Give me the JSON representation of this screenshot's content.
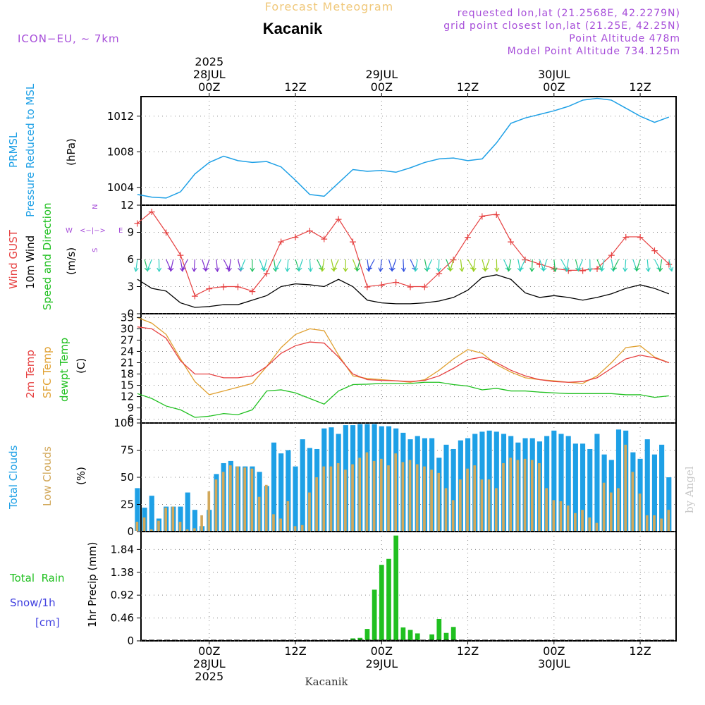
{
  "header": {
    "title": "Forecast Meteogram",
    "location": "Kacanik",
    "model": "ICON−EU, ~ 7km",
    "requested": "requested lon,lat (21.2568E, 42.2279N)",
    "grid_point": "grid point closest lon,lat (21.25E, 42.25N)",
    "point_altitude": "Point Altitude 478m",
    "model_altitude": "Model Point Altitude 734.125m",
    "footer_location": "Kacanik",
    "credit": "by Angel"
  },
  "time_axis": {
    "top_labels": [
      {
        "hour": 24,
        "lines": [
          "2025",
          "28JUL",
          "00Z"
        ]
      },
      {
        "hour": 36,
        "lines": [
          "12Z"
        ]
      },
      {
        "hour": 48,
        "lines": [
          "29JUL",
          "00Z"
        ]
      },
      {
        "hour": 60,
        "lines": [
          "12Z"
        ]
      },
      {
        "hour": 72,
        "lines": [
          "30JUL",
          "00Z"
        ]
      },
      {
        "hour": 84,
        "lines": [
          "12Z"
        ]
      }
    ],
    "bottom_labels": [
      {
        "hour": 24,
        "lines": [
          "00Z",
          "28JUL",
          "2025"
        ]
      },
      {
        "hour": 36,
        "lines": [
          "12Z"
        ]
      },
      {
        "hour": 48,
        "lines": [
          "00Z",
          "29JUL"
        ]
      },
      {
        "hour": 60,
        "lines": [
          "12Z"
        ]
      },
      {
        "hour": 72,
        "lines": [
          "00Z",
          "30JUL"
        ]
      },
      {
        "hour": 84,
        "lines": [
          "12Z"
        ]
      }
    ]
  },
  "colors": {
    "pressure": "#1ea0e6",
    "gust": "#e64040",
    "wind": "#000000",
    "temp2m": "#e64040",
    "sfc": "#e0a030",
    "dewpt": "#20c020",
    "total_cloud": "#1ea0e6",
    "low_cloud": "#d2a85a",
    "rain": "#20c020",
    "snow": "#4040e0",
    "purple": "#a64dd9"
  },
  "panels": {
    "pressure": {
      "labels": [
        {
          "text": "PRMSL",
          "color": "#1ea0e6"
        },
        {
          "text": "Pressure Reduced to MSL",
          "color": "#1ea0e6"
        },
        {
          "text": "(hPa)",
          "color": "#000000"
        }
      ],
      "ticks": [
        "1004",
        "1008",
        "1012"
      ]
    },
    "wind": {
      "labels": [
        {
          "text": "Wind GUST",
          "color": "#e64040"
        },
        {
          "text": "10m Wind",
          "color": "#000000"
        },
        {
          "text": "Speed and Direction",
          "color": "#20c020"
        },
        {
          "text": "(m/s)",
          "color": "#000000"
        }
      ],
      "ticks": [
        "0",
        "3",
        "6",
        "9",
        "12"
      ],
      "compass": {
        "n": "N",
        "s": "S",
        "e": "E",
        "w": "W",
        "arrow": "<−|−>"
      }
    },
    "temp": {
      "labels": [
        {
          "text": "2m Temp",
          "color": "#e64040"
        },
        {
          "text": "SFC Temp",
          "color": "#e0a030"
        },
        {
          "text": "dewpt Temp",
          "color": "#20c020"
        },
        {
          "text": "(C)",
          "color": "#000000"
        }
      ],
      "ticks": [
        "6",
        "9",
        "12",
        "15",
        "18",
        "21",
        "24",
        "27",
        "30",
        "33"
      ]
    },
    "clouds": {
      "labels": [
        {
          "text": "Total Clouds",
          "color": "#1ea0e6"
        },
        {
          "text": "Low Clouds",
          "color": "#d2a85a"
        },
        {
          "text": "(%)",
          "color": "#000000"
        }
      ],
      "ticks": [
        "0",
        "25",
        "50",
        "75",
        "100"
      ]
    },
    "precip": {
      "labels": [
        {
          "text": "Total  Rain",
          "color": "#20c020"
        },
        {
          "text": "Snow/1h",
          "color": "#4040e0"
        },
        {
          "text": "[cm]",
          "color": "#4040e0"
        },
        {
          "text": "1hr Precip (mm)",
          "color": "#000000"
        }
      ],
      "ticks": [
        "0",
        "0.46",
        "0.92",
        "1.38",
        "1.84"
      ]
    }
  },
  "chart_data": [
    {
      "type": "line",
      "title": "PRMSL Pressure Reduced to MSL",
      "ylabel": "(hPa)",
      "ylim": [
        1002.0,
        1014.2
      ],
      "x_hours": [
        14,
        16,
        18,
        20,
        22,
        24,
        26,
        28,
        30,
        32,
        34,
        36,
        38,
        40,
        42,
        44,
        46,
        48,
        50,
        52,
        54,
        56,
        58,
        60,
        62,
        64,
        66,
        68,
        70,
        72,
        74,
        76,
        78,
        80,
        82,
        84,
        86,
        88
      ],
      "series": [
        {
          "values": [
            1003.2,
            1002.9,
            1002.8,
            1003.5,
            1005.5,
            1006.8,
            1007.5,
            1007.0,
            1006.8,
            1006.9,
            1006.3,
            1004.8,
            1003.2,
            1003.0,
            1004.5,
            1006.0,
            1005.8,
            1005.9,
            1005.7,
            1006.2,
            1006.8,
            1007.2,
            1007.3,
            1007.0,
            1007.2,
            1009.0,
            1011.2,
            1011.8,
            1012.2,
            1012.6,
            1013.1,
            1013.8,
            1014.0,
            1013.8,
            1012.9,
            1012.0,
            1011.3,
            1011.9
          ]
        }
      ],
      "grid": true
    },
    {
      "type": "line",
      "title": "Wind GUST / 10m Wind Speed and Direction",
      "ylabel": "(m/s)",
      "ylim": [
        0,
        12
      ],
      "x_hours": [
        14,
        16,
        18,
        20,
        22,
        24,
        26,
        28,
        30,
        32,
        34,
        36,
        38,
        40,
        42,
        44,
        46,
        48,
        50,
        52,
        54,
        56,
        58,
        60,
        62,
        64,
        66,
        68,
        70,
        72,
        74,
        76,
        78,
        80,
        82,
        84,
        86,
        88
      ],
      "series": [
        {
          "name": "Wind GUST",
          "values": [
            10.0,
            11.3,
            9.0,
            6.5,
            2.0,
            2.8,
            3.0,
            3.0,
            2.5,
            4.5,
            8.0,
            8.5,
            9.2,
            8.3,
            10.5,
            8.0,
            3.0,
            3.2,
            3.5,
            3.0,
            3.0,
            4.5,
            6.0,
            8.5,
            10.8,
            11.0,
            8.0,
            6.0,
            5.5,
            5.0,
            4.8,
            4.8,
            5.0,
            6.5,
            8.5,
            8.5,
            7.0,
            5.5
          ]
        },
        {
          "name": "10m Wind",
          "values": [
            3.8,
            2.8,
            2.5,
            1.2,
            0.7,
            0.8,
            1.0,
            1.0,
            1.5,
            2.0,
            3.0,
            3.3,
            3.2,
            3.0,
            3.8,
            3.0,
            1.5,
            1.2,
            1.1,
            1.1,
            1.2,
            1.4,
            1.8,
            2.6,
            4.0,
            4.3,
            3.8,
            2.3,
            1.8,
            2.0,
            1.8,
            1.5,
            1.8,
            2.2,
            2.8,
            3.2,
            2.8,
            2.2
          ]
        }
      ],
      "grid": true
    },
    {
      "type": "line",
      "title": "2m Temp / SFC Temp / dewpt Temp",
      "ylabel": "(C)",
      "ylim": [
        5,
        34
      ],
      "x_hours": [
        14,
        16,
        18,
        20,
        22,
        24,
        26,
        28,
        30,
        32,
        34,
        36,
        38,
        40,
        42,
        44,
        46,
        48,
        50,
        52,
        54,
        56,
        58,
        60,
        62,
        64,
        66,
        68,
        70,
        72,
        74,
        76,
        78,
        80,
        82,
        84,
        86,
        88
      ],
      "series": [
        {
          "name": "2m Temp",
          "values": [
            30.5,
            30,
            27.5,
            21.5,
            18,
            18,
            17,
            17,
            17.5,
            20,
            23.5,
            25.5,
            26.5,
            26.2,
            22.5,
            18,
            16.5,
            16.3,
            16.2,
            16,
            16.3,
            17.5,
            19.5,
            21.8,
            22.5,
            21,
            19,
            17.5,
            16.5,
            16,
            15.8,
            16,
            17,
            19.5,
            22,
            23,
            22.3,
            21
          ]
        },
        {
          "name": "SFC Temp",
          "values": [
            33,
            31.5,
            28.5,
            22,
            16,
            12.5,
            13.5,
            14.5,
            15.5,
            20,
            25,
            28.5,
            30,
            29.5,
            23,
            17.5,
            16.8,
            16.5,
            16.2,
            15.8,
            16.5,
            19,
            22,
            24.5,
            23.5,
            20.5,
            18.5,
            17,
            16.5,
            16.2,
            15.8,
            15.5,
            17.5,
            21,
            25,
            25.5,
            22.5,
            21
          ]
        },
        {
          "name": "dewpt Temp",
          "values": [
            12.8,
            11.5,
            9.5,
            8.5,
            6.5,
            6.8,
            7.5,
            7.2,
            8.5,
            13.5,
            13.8,
            13,
            11.5,
            10,
            13.5,
            15.2,
            15.3,
            15.5,
            15.5,
            15.5,
            15.8,
            15.8,
            15.2,
            14.8,
            13.8,
            14.2,
            13.5,
            13.5,
            13.2,
            13,
            12.8,
            12.8,
            12.8,
            12.8,
            12.5,
            12.5,
            11.8,
            12.2
          ]
        }
      ],
      "grid": true
    },
    {
      "type": "bar",
      "title": "Total Clouds / Low Clouds",
      "ylabel": "(%)",
      "ylim": [
        0,
        100
      ],
      "x_hours": [
        14,
        15,
        16,
        17,
        18,
        19,
        20,
        21,
        22,
        23,
        24,
        25,
        26,
        27,
        28,
        29,
        30,
        31,
        32,
        33,
        34,
        35,
        36,
        37,
        38,
        39,
        40,
        41,
        42,
        43,
        44,
        45,
        46,
        47,
        48,
        49,
        50,
        51,
        52,
        53,
        54,
        55,
        56,
        57,
        58,
        59,
        60,
        61,
        62,
        63,
        64,
        65,
        66,
        67,
        68,
        69,
        70,
        71,
        72,
        73,
        74,
        75,
        76,
        77,
        78,
        79,
        80,
        81,
        82,
        83,
        84,
        85,
        86,
        87,
        88
      ],
      "series": [
        {
          "name": "Total Clouds",
          "values": [
            40,
            22,
            33,
            12,
            23,
            23,
            23,
            36,
            20,
            5,
            20,
            53,
            63,
            65,
            60,
            60,
            60,
            55,
            42,
            82,
            72,
            75,
            60,
            85,
            77,
            76,
            95,
            96,
            90,
            98,
            98,
            99,
            99,
            99,
            97,
            97,
            95,
            91,
            85,
            88,
            86,
            86,
            68,
            80,
            76,
            84,
            86,
            90,
            92,
            93,
            92,
            90,
            88,
            82,
            86,
            86,
            83,
            88,
            93,
            90,
            88,
            81,
            81,
            76,
            90,
            71,
            66,
            94,
            93,
            73,
            67,
            85,
            71,
            80,
            50
          ]
        },
        {
          "name": "Low Clouds",
          "values": [
            9,
            13,
            2,
            10,
            22,
            23,
            9,
            2,
            3,
            15,
            37,
            48,
            55,
            61,
            60,
            59,
            58,
            32,
            43,
            16,
            12,
            28,
            5,
            6,
            36,
            50,
            60,
            60,
            63,
            57,
            62,
            68,
            73,
            65,
            67,
            61,
            72,
            64,
            66,
            62,
            60,
            57,
            54,
            40,
            29,
            48,
            58,
            61,
            48,
            48,
            40,
            63,
            68,
            66,
            67,
            66,
            63,
            40,
            29,
            28,
            24,
            17,
            20,
            13,
            8,
            45,
            36,
            40,
            80,
            55,
            35,
            15,
            15,
            12,
            20
          ]
        }
      ],
      "grid": true
    },
    {
      "type": "bar",
      "title": "Total Rain / Snow/1h",
      "ylabel": "1hr Precip (mm)",
      "ylim": [
        0,
        2.2
      ],
      "x_hours": [
        44,
        45,
        46,
        47,
        48,
        49,
        50,
        51,
        52,
        53,
        54,
        55,
        56,
        57,
        58,
        59
      ],
      "series": [
        {
          "name": "Total Rain",
          "values": [
            0.05,
            0.06,
            0.24,
            1.03,
            1.53,
            1.65,
            2.12,
            0.27,
            0.22,
            0.15,
            0,
            0.13,
            0.44,
            0.16,
            0.28,
            0
          ]
        }
      ],
      "grid": true
    }
  ]
}
